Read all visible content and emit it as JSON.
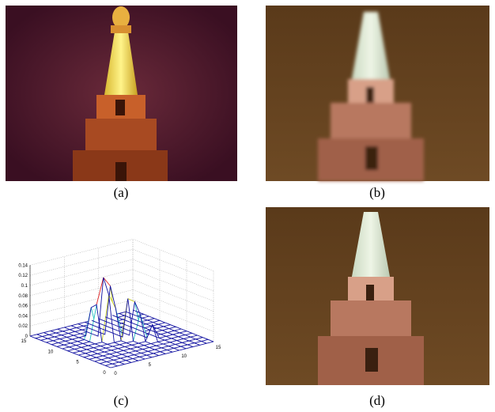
{
  "panels": [
    {
      "label": "(a)"
    },
    {
      "label": "(b)"
    },
    {
      "label": "(c)"
    },
    {
      "label": "(d)"
    }
  ],
  "plot": {
    "z_ticks": [
      "0",
      "0.02",
      "0.04",
      "0.06",
      "0.08",
      "0.1",
      "0.12",
      "0.14"
    ],
    "x_ticks": [
      "0",
      "5",
      "10",
      "15"
    ],
    "y_ticks": [
      "0",
      "5",
      "10",
      "15"
    ]
  }
}
